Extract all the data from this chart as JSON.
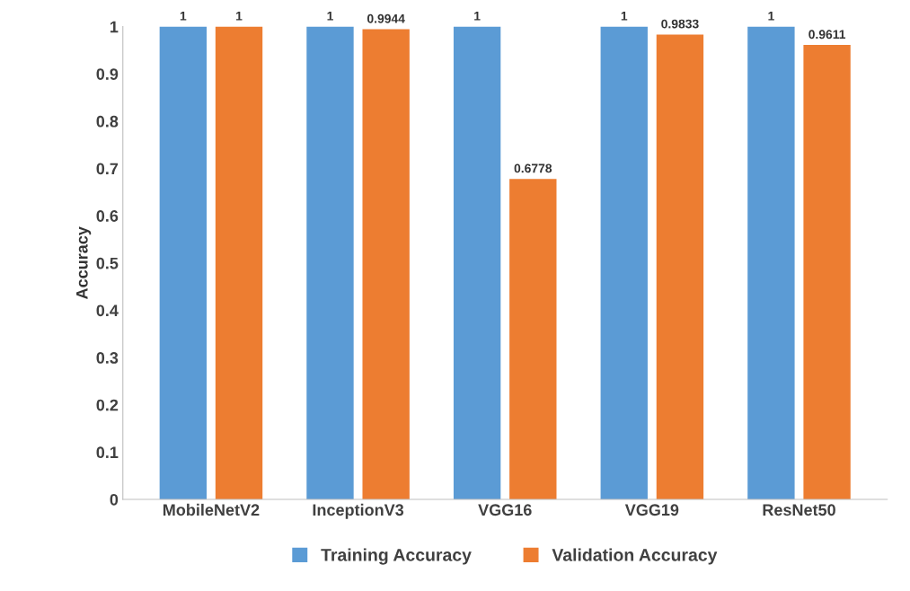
{
  "chart_data": {
    "type": "bar",
    "ylabel": "Accuracy",
    "categories": [
      "MobileNetV2",
      "InceptionV3",
      "VGG16",
      "VGG19",
      "ResNet50"
    ],
    "series": [
      {
        "name": "Training Accuracy",
        "color": "#5b9bd5",
        "values": [
          1,
          1,
          1,
          1,
          1
        ]
      },
      {
        "name": "Validation Accuracy",
        "color": "#ed7d31",
        "values": [
          1,
          0.9944,
          0.6778,
          0.9833,
          0.9611
        ]
      }
    ],
    "ylim": [
      0,
      1
    ],
    "yticks": [
      0,
      0.1,
      0.2,
      0.3,
      0.4,
      0.5,
      0.6,
      0.7,
      0.8,
      0.9,
      1
    ],
    "data_labels": true,
    "legend": "bottom",
    "grid": false
  }
}
